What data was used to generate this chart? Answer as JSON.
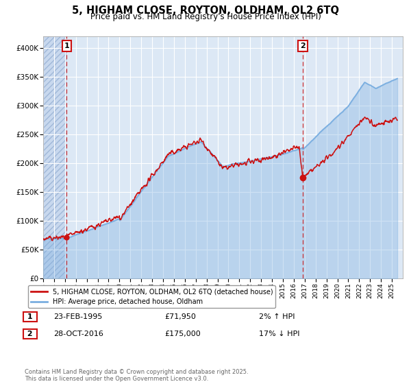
{
  "title": "5, HIGHAM CLOSE, ROYTON, OLDHAM, OL2 6TQ",
  "subtitle": "Price paid vs. HM Land Registry's House Price Index (HPI)",
  "background_color": "#ffffff",
  "plot_bg_color": "#dce8f5",
  "sale1_date": 1995.15,
  "sale1_price": 71950,
  "sale1_label": "1",
  "sale2_date": 2016.83,
  "sale2_price": 175000,
  "sale2_label": "2",
  "legend_line1": "5, HIGHAM CLOSE, ROYTON, OLDHAM, OL2 6TQ (detached house)",
  "legend_line2": "HPI: Average price, detached house, Oldham",
  "ann1_date": "23-FEB-1995",
  "ann1_price": "£71,950",
  "ann1_hpi": "2% ↑ HPI",
  "ann2_date": "28-OCT-2016",
  "ann2_price": "£175,000",
  "ann2_hpi": "17% ↓ HPI",
  "footer": "Contains HM Land Registry data © Crown copyright and database right 2025.\nThis data is licensed under the Open Government Licence v3.0.",
  "xmin": 1993,
  "xmax": 2026,
  "ymin": 0,
  "ymax": 420000
}
